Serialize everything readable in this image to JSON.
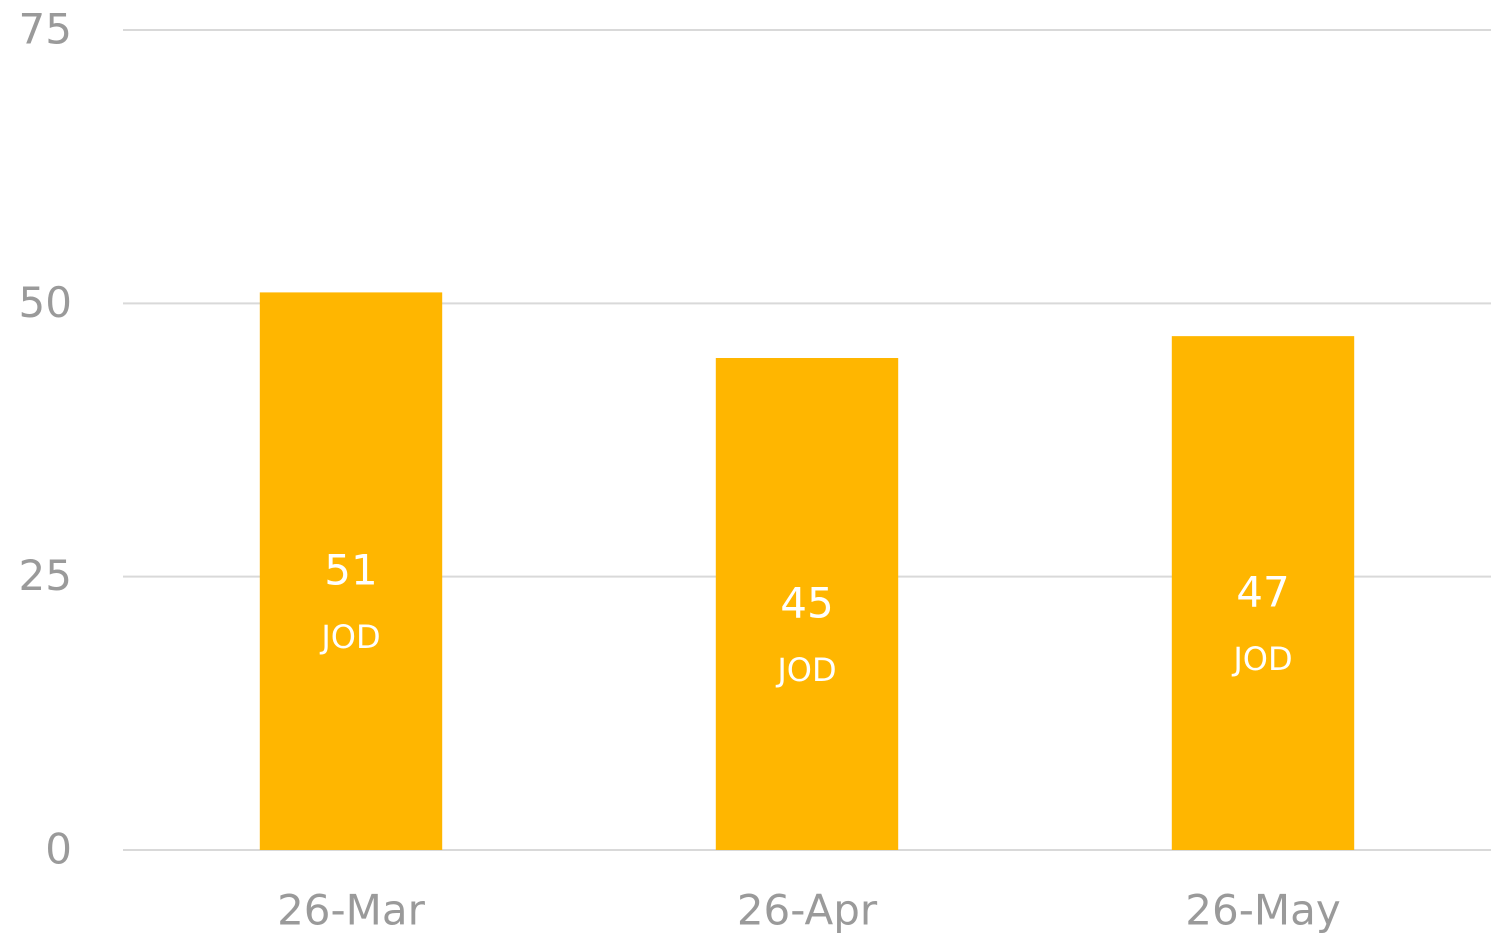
{
  "chart_data": {
    "type": "bar",
    "categories": [
      "26-Mar",
      "26-Apr",
      "26-May"
    ],
    "values": [
      51,
      45,
      47
    ],
    "unit": "JOD",
    "color": "#ffb600",
    "ylim": [
      0,
      75
    ],
    "yticks": [
      0,
      25,
      50,
      75
    ],
    "grid": true
  }
}
